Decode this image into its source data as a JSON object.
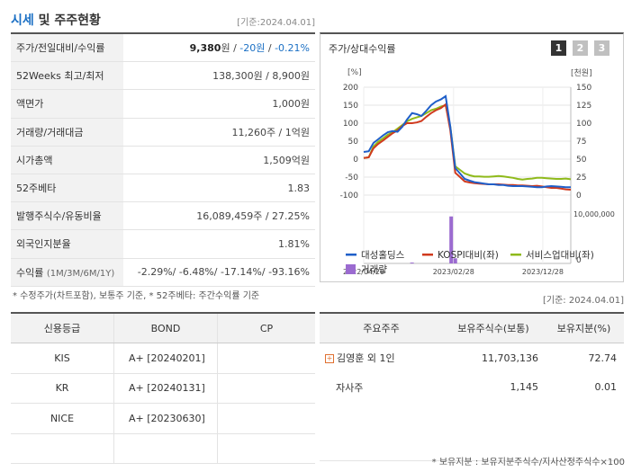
{
  "header": {
    "title_main": "시세",
    "title_rest": " 및 주주현황",
    "base_date": "[기준:2024.04.01]"
  },
  "info_rows": [
    {
      "label": "주가/전일대비/수익률",
      "price": "9,380",
      "price_unit": "원",
      "sep": " / ",
      "change": "-20원",
      "sep2": " / ",
      "rate": "-0.21%"
    },
    {
      "label": "52Weeks 최고/최저",
      "value": "138,300원 / 8,900원"
    },
    {
      "label": "액면가",
      "value": "1,000원"
    },
    {
      "label": "거래량/거래대금",
      "value": "11,260주 / 1억원"
    },
    {
      "label": "시가총액",
      "value": "1,509억원"
    },
    {
      "label": "52주베타",
      "value": "1.83"
    },
    {
      "label": "발행주식수/유동비율",
      "value": "16,089,459주 / 27.25%"
    },
    {
      "label": "외국인지분율",
      "value": "1.81%"
    },
    {
      "label": "수익률",
      "label_sub": "(1M/3M/6M/1Y)",
      "value": "-2.29%/ -6.48%/ -17.14%/ -93.16%"
    }
  ],
  "notes": {
    "note1": "* 수정주가(차트포함), 보통주 기준, * 52주베타: 주간수익률 기준",
    "base_date2": "[기준: 2024.04.01]",
    "note2": "* 보유지분 : 보유지분주식수/지사산정주식수×100"
  },
  "chart_panel": {
    "title": "주가/상대수익률",
    "buttons": [
      "1",
      "2",
      "3"
    ],
    "active_color": "#333333",
    "inactive_color": "#c0c0c0"
  },
  "chart_data": {
    "type": "line",
    "left_unit": "[%]",
    "right_unit": "[천원]",
    "left_ticks": [
      200,
      150,
      100,
      50,
      0,
      -50,
      -100
    ],
    "right_ticks": [
      150,
      125,
      100,
      75,
      50,
      25,
      0
    ],
    "volume_ticks": [
      "10,000,000",
      "0"
    ],
    "x_labels": [
      "2022/04/29",
      "2023/02/28",
      "2023/12/28"
    ],
    "x": [
      "2022/04/29",
      "2022/05/16",
      "2022/06/01",
      "2022/06/17",
      "2022/07/04",
      "2022/07/20",
      "2022/08/05",
      "2022/08/22",
      "2022/09/07",
      "2022/09/23",
      "2022/10/10",
      "2022/10/26",
      "2022/11/11",
      "2022/11/28",
      "2022/12/14",
      "2022/12/30",
      "2023/01/16",
      "2023/02/01",
      "2023/02/17",
      "2023/03/06",
      "2023/03/22",
      "2023/04/07",
      "2023/04/24",
      "2023/05/10",
      "2023/05/26",
      "2023/06/12",
      "2023/06/28",
      "2023/07/14",
      "2023/07/31",
      "2023/08/16",
      "2023/09/01",
      "2023/09/18",
      "2023/10/04",
      "2023/10/20",
      "2023/11/06",
      "2023/11/22",
      "2023/12/08",
      "2023/12/25",
      "2024/01/10",
      "2024/01/26",
      "2024/02/12",
      "2024/02/28",
      "2024/03/15",
      "2024/04/01"
    ],
    "series": [
      {
        "name": "대성홀딩스",
        "axis": "left",
        "color": "#1f5fc9",
        "values": [
          20,
          22,
          45,
          55,
          66,
          75,
          78,
          76,
          90,
          110,
          128,
          125,
          120,
          135,
          150,
          160,
          166,
          175,
          90,
          -25,
          -40,
          -55,
          -60,
          -64,
          -66,
          -68,
          -70,
          -70,
          -72,
          -72,
          -74,
          -75,
          -75,
          -75,
          -76,
          -77,
          -78,
          -78,
          -76,
          -75,
          -76,
          -77,
          -78,
          -78
        ]
      },
      {
        "name": "KOSPI대비(좌)",
        "axis": "left",
        "color": "#d03a1e",
        "values": [
          3,
          5,
          30,
          42,
          52,
          62,
          72,
          80,
          92,
          100,
          100,
          102,
          106,
          118,
          128,
          136,
          142,
          152,
          80,
          -38,
          -50,
          -62,
          -65,
          -67,
          -68,
          -69,
          -70,
          -70,
          -70,
          -71,
          -72,
          -72,
          -73,
          -73,
          -74,
          -75,
          -74,
          -76,
          -78,
          -80,
          -80,
          -82,
          -84,
          -85
        ]
      },
      {
        "name": "서비스업대비(좌)",
        "axis": "left",
        "color": "#8fba1b",
        "values": [
          3,
          5,
          35,
          48,
          58,
          68,
          75,
          85,
          95,
          105,
          112,
          116,
          120,
          128,
          136,
          140,
          146,
          150,
          90,
          -20,
          -30,
          -40,
          -45,
          -48,
          -48,
          -49,
          -49,
          -48,
          -47,
          -48,
          -50,
          -52,
          -55,
          -57,
          -55,
          -54,
          -52,
          -52,
          -53,
          -54,
          -55,
          -55,
          -54,
          -56
        ]
      }
    ],
    "volume": {
      "name": "거래량",
      "color": "#9b6bd0",
      "bars": [
        {
          "x": "2022/10/10",
          "value": 200000
        },
        {
          "x": "2023/02/20",
          "value": 11000000
        },
        {
          "x": "2023/03/06",
          "value": 1200000
        }
      ]
    },
    "left_range": [
      -100,
      200
    ],
    "volume_range": [
      0,
      12000000
    ],
    "grid": true,
    "legend_position": "bottom"
  },
  "credit": {
    "headers": [
      "신용등급",
      "BOND",
      "CP"
    ],
    "rows": [
      {
        "agency": "KIS",
        "bond": "A+  [20240201]",
        "cp": ""
      },
      {
        "agency": "KR",
        "bond": "A+  [20240131]",
        "cp": ""
      },
      {
        "agency": "NICE",
        "bond": "A+  [20230630]",
        "cp": ""
      },
      {
        "agency": "",
        "bond": "",
        "cp": ""
      }
    ]
  },
  "holders": {
    "headers": [
      "주요주주",
      "보유주식수(보통)",
      "보유지분(%)"
    ],
    "rows": [
      {
        "name": "김영훈 외 1인",
        "shares": "11,703,136",
        "ratio": "72.74",
        "expand": "+"
      },
      {
        "name": "자사주",
        "shares": "1,145",
        "ratio": "0.01"
      },
      {
        "name": "",
        "shares": "",
        "ratio": ""
      },
      {
        "name": "",
        "shares": "",
        "ratio": ""
      }
    ]
  }
}
